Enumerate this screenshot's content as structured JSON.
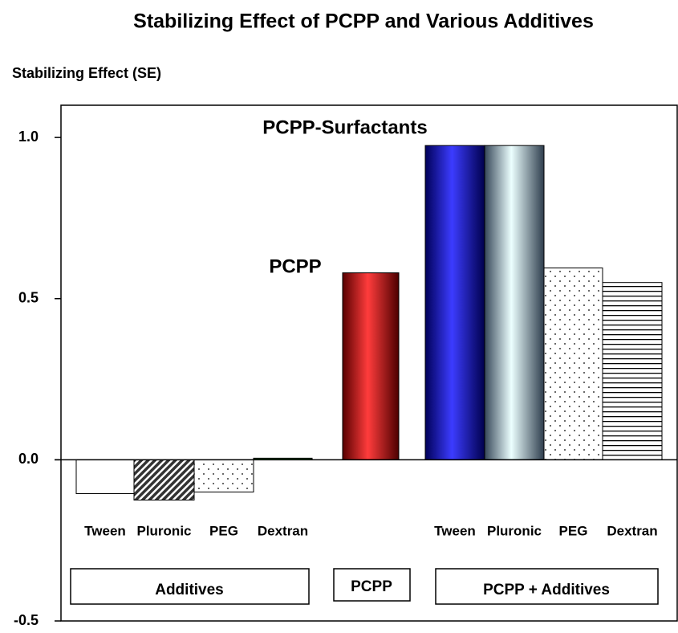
{
  "chart_data": {
    "type": "bar",
    "title": "Stabilizing Effect of PCPP and Various Additives",
    "y_label": "Stabilizing Effect (SE)",
    "categories": [
      "Tween",
      "Pluronic",
      "PEG",
      "Dextran",
      null,
      "Tween",
      "Pluronic",
      "PEG",
      "Dextran"
    ],
    "values": [
      -0.105,
      -0.125,
      -0.1,
      0.005,
      0.58,
      0.975,
      0.975,
      0.595,
      0.55
    ],
    "colors": [
      "#ffffff",
      "#333333",
      "#ffffff",
      "#006600",
      "#ff0000",
      "#0000ff",
      "#99ccff",
      "#ffffff",
      "#ffffff"
    ],
    "patterns": [
      null,
      "hatch",
      "dots",
      null,
      null,
      null,
      null,
      "dots",
      "hlines"
    ],
    "groups": [
      "Additives",
      "PCPP",
      "PCPP + Additives"
    ],
    "annotations": [
      "PCPP-Surfactants",
      "PCPP"
    ],
    "ylim": [
      -0.5,
      1.1
    ],
    "yticks": [
      {
        "value": 1,
        "label": "1.0"
      },
      0.5,
      {
        "value": 0,
        "label": "0.0"
      },
      -0.5
    ],
    "grid": false
  }
}
